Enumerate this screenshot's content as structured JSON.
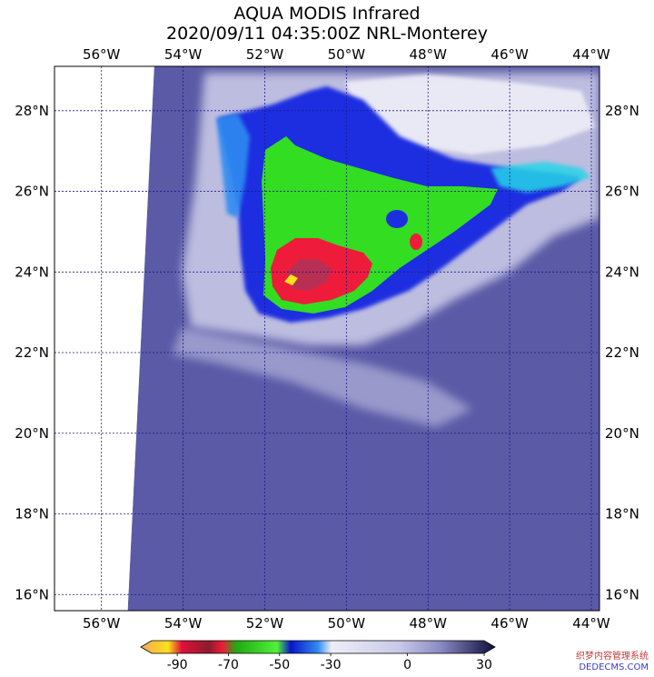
{
  "title": {
    "line1": "AQUA MODIS Infrared",
    "line2": "2020/09/11 04:35:00Z NRL-Monterey"
  },
  "map": {
    "lon_ticks": [
      {
        "value": -56,
        "label": "56°W"
      },
      {
        "value": -54,
        "label": "54°W"
      },
      {
        "value": -52,
        "label": "52°W"
      },
      {
        "value": -50,
        "label": "50°W"
      },
      {
        "value": -48,
        "label": "48°W"
      },
      {
        "value": -46,
        "label": "46°W"
      },
      {
        "value": -44,
        "label": "44°W"
      }
    ],
    "lat_ticks": [
      {
        "value": 28,
        "label": "28°N"
      },
      {
        "value": 26,
        "label": "26°N"
      },
      {
        "value": 24,
        "label": "24°N"
      },
      {
        "value": 22,
        "label": "22°N"
      },
      {
        "value": 20,
        "label": "20°N"
      },
      {
        "value": 18,
        "label": "18°N"
      },
      {
        "value": 16,
        "label": "16°N"
      }
    ],
    "lon_range": [
      -57.15,
      -43.8
    ],
    "lat_range": [
      15.6,
      29.1
    ],
    "swath_edge": [
      [
        -54.7,
        29.1
      ],
      [
        -55.35,
        15.6
      ]
    ],
    "colors": {
      "background": "#5a5aa6",
      "cirrus_light": "#d9d9ee",
      "cold_blue": "#1c2fe0",
      "mid_blue": "#2f8bf0",
      "cyan": "#27d4e8",
      "green": "#33dd22",
      "red": "#ee1c3a",
      "dark_red": "#b23257",
      "yellow": "#ffe21a",
      "grid": "#1a1a8c"
    }
  },
  "colorbar": {
    "labels": [
      "-90",
      "-70",
      "-50",
      "-30",
      "0",
      "30"
    ],
    "range": [
      -100,
      30
    ],
    "stops": [
      {
        "value": -100,
        "color": "#f3a45d"
      },
      {
        "value": -90,
        "color": "#fbe21a"
      },
      {
        "value": -85,
        "color": "#e0103a"
      },
      {
        "value": -75,
        "color": "#8c1b2c"
      },
      {
        "value": -70,
        "color": "#ee1c3a"
      },
      {
        "value": -65,
        "color": "#1faa12"
      },
      {
        "value": -50,
        "color": "#52f038"
      },
      {
        "value": -45,
        "color": "#0a14c8"
      },
      {
        "value": -35,
        "color": "#2f8bf0"
      },
      {
        "value": -30,
        "color": "#eeeef8"
      },
      {
        "value": -5,
        "color": "#c8c8e8"
      },
      {
        "value": 10,
        "color": "#8a8ac4"
      },
      {
        "value": 30,
        "color": "#0e0e3a"
      }
    ]
  },
  "watermark": {
    "line1": "织梦内容管理系统",
    "line2": "DEDECMS.COM"
  }
}
